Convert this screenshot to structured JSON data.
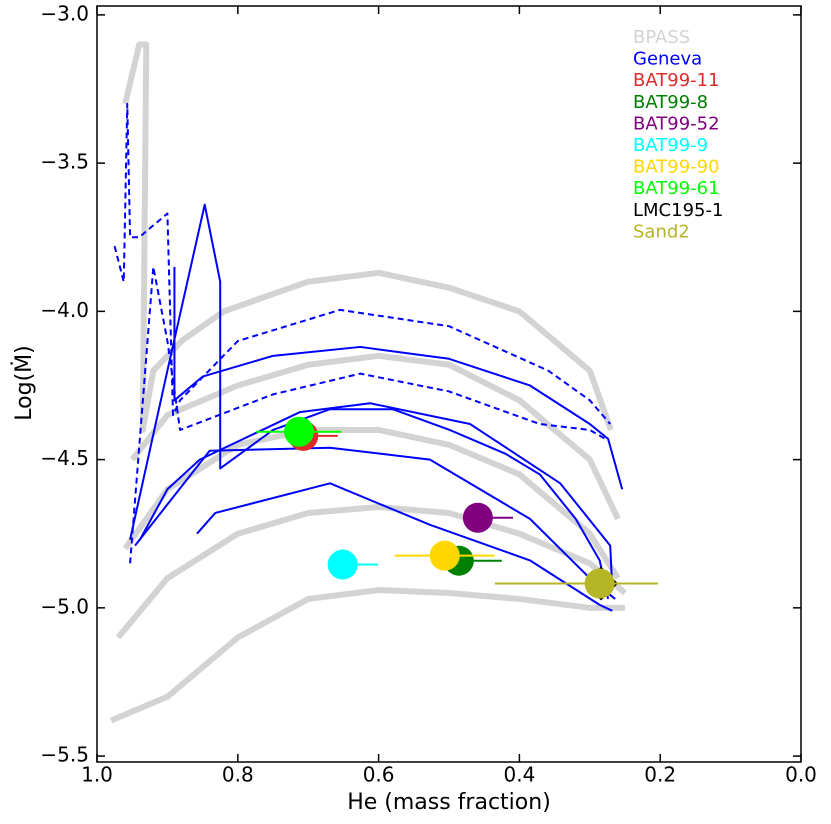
{
  "chart_data": {
    "type": "scatter",
    "xlabel": "He (mass fraction)",
    "ylabel": "Log(Ṁ)",
    "xlim": [
      1.0,
      0.0
    ],
    "ylim": [
      -5.52,
      -2.97
    ],
    "xticks": [
      {
        "value": 1.0,
        "label": "1.0"
      },
      0.8,
      0.6,
      0.4,
      0.2,
      {
        "value": 0.0,
        "label": "0.0"
      }
    ],
    "yticks": [
      {
        "value": -3.0,
        "label": "−3.0"
      },
      {
        "value": -3.5,
        "label": "−3.5"
      },
      {
        "value": -4.0,
        "label": "−4.0"
      },
      {
        "value": -4.5,
        "label": "−4.5"
      },
      {
        "value": -5.0,
        "label": "−5.0"
      },
      {
        "value": -5.5,
        "label": "−5.5"
      }
    ],
    "series": [
      {
        "name": "BPASS",
        "color": "#d3d3d3",
        "type": "line",
        "tracks": [
          {
            "x": [
              0.96,
              0.94,
              0.93,
              0.935,
              0.92,
              0.88,
              0.82,
              0.7,
              0.6,
              0.5,
              0.4,
              0.3,
              0.27
            ],
            "y": [
              -3.3,
              -3.1,
              -3.1,
              -4.4,
              -4.2,
              -4.1,
              -4.0,
              -3.9,
              -3.87,
              -3.92,
              -4.0,
              -4.2,
              -4.4
            ]
          },
          {
            "x": [
              0.95,
              0.9,
              0.8,
              0.7,
              0.6,
              0.5,
              0.4,
              0.3,
              0.26
            ],
            "y": [
              -4.5,
              -4.35,
              -4.25,
              -4.18,
              -4.15,
              -4.18,
              -4.3,
              -4.5,
              -4.7
            ]
          },
          {
            "x": [
              0.96,
              0.9,
              0.8,
              0.7,
              0.6,
              0.5,
              0.4,
              0.3,
              0.26
            ],
            "y": [
              -4.8,
              -4.6,
              -4.45,
              -4.4,
              -4.4,
              -4.45,
              -4.55,
              -4.75,
              -4.9
            ]
          },
          {
            "x": [
              0.97,
              0.9,
              0.8,
              0.7,
              0.6,
              0.5,
              0.4,
              0.3,
              0.25
            ],
            "y": [
              -5.1,
              -4.9,
              -4.75,
              -4.68,
              -4.66,
              -4.68,
              -4.75,
              -4.85,
              -4.95
            ]
          },
          {
            "x": [
              0.98,
              0.9,
              0.8,
              0.7,
              0.6,
              0.5,
              0.4,
              0.3,
              0.25
            ],
            "y": [
              -5.38,
              -5.3,
              -5.1,
              -4.97,
              -4.94,
              -4.95,
              -4.97,
              -5.0,
              -5.0
            ]
          }
        ]
      },
      {
        "name": "Geneva",
        "color": "#0000ff",
        "type": "line",
        "tracks": [
          {
            "dashed": false,
            "x": [
              0.953,
              0.9,
              0.847,
              0.825,
              0.825,
              0.75,
              0.669,
              0.58,
              0.499,
              0.42,
              0.371,
              0.32,
              0.286,
              0.274
            ],
            "y": [
              -4.77,
              -4.2,
              -3.64,
              -3.9,
              -4.53,
              -4.4,
              -4.33,
              -4.33,
              -4.4,
              -4.48,
              -4.55,
              -4.7,
              -4.84,
              -4.97
            ]
          },
          {
            "dashed": false,
            "x": [
              0.89,
              0.89,
              0.85,
              0.75,
              0.626,
              0.5,
              0.385,
              0.3,
              0.274,
              0.254
            ],
            "y": [
              -3.85,
              -4.3,
              -4.22,
              -4.15,
              -4.12,
              -4.16,
              -4.25,
              -4.38,
              -4.43,
              -4.6
            ]
          },
          {
            "dashed": true,
            "x": [
              0.975,
              0.962,
              0.957,
              0.953,
              0.94,
              0.9,
              0.892,
              0.882,
              0.8,
              0.655,
              0.5,
              0.359,
              0.3,
              0.271
            ],
            "y": [
              -3.78,
              -3.9,
              -3.3,
              -3.75,
              -3.75,
              -3.67,
              -4.35,
              -4.3,
              -4.1,
              -3.995,
              -4.05,
              -4.2,
              -4.3,
              -4.38
            ]
          },
          {
            "dashed": true,
            "x": [
              0.953,
              0.92,
              0.9,
              0.882,
              0.75,
              0.626,
              0.5,
              0.371,
              0.3,
              0.278
            ],
            "y": [
              -4.85,
              -3.85,
              -4.1,
              -4.4,
              -4.28,
              -4.21,
              -4.27,
              -4.38,
              -4.4,
              -4.43
            ]
          },
          {
            "dashed": false,
            "x": [
              0.939,
              0.9,
              0.854,
              0.712,
              0.612,
              0.47,
              0.342,
              0.271,
              0.268
            ],
            "y": [
              -4.77,
              -4.6,
              -4.5,
              -4.34,
              -4.31,
              -4.38,
              -4.58,
              -4.79,
              -4.94
            ]
          },
          {
            "dashed": false,
            "x": [
              0.946,
              0.84,
              0.669,
              0.527,
              0.385,
              0.3,
              0.264
            ],
            "y": [
              -4.79,
              -4.47,
              -4.46,
              -4.5,
              -4.7,
              -4.9,
              -4.97
            ]
          },
          {
            "dashed": false,
            "x": [
              0.858,
              0.832,
              0.669,
              0.527,
              0.385,
              0.286,
              0.268
            ],
            "y": [
              -4.75,
              -4.68,
              -4.58,
              -4.72,
              -4.84,
              -4.99,
              -5.01
            ]
          }
        ]
      },
      {
        "name": "BAT99-11",
        "color": "#dd2a2a",
        "type": "scatter",
        "x": 0.707,
        "y": -4.42,
        "xerr": [
          0.049,
          0
        ]
      },
      {
        "name": "BAT99-8",
        "color": "#008000",
        "type": "scatter",
        "x": 0.486,
        "y": -4.841,
        "xerr": [
          0.061,
          0
        ]
      },
      {
        "name": "BAT99-52",
        "color": "#800080",
        "type": "scatter",
        "x": 0.459,
        "y": -4.696,
        "xerr": [
          0.05,
          0
        ]
      },
      {
        "name": "BAT99-9",
        "color": "#00ffff",
        "type": "scatter",
        "x": 0.651,
        "y": -4.854,
        "xerr": [
          0.05,
          0
        ]
      },
      {
        "name": "BAT99-90",
        "color": "#ffd700",
        "type": "scatter",
        "x": 0.506,
        "y": -4.824,
        "xerr": [
          0.071,
          0.071
        ]
      },
      {
        "name": "BAT99-61",
        "color": "#00ff00",
        "type": "scatter",
        "x": 0.713,
        "y": -4.406,
        "xerr": [
          0.06,
          0.061
        ]
      },
      {
        "name": "LMC195-1",
        "color": "#000000",
        "type": "scatter",
        "marker": "diamond",
        "x": 0.284,
        "y": -4.918
      },
      {
        "name": "Sand2",
        "color": "#b5b525",
        "type": "scatter",
        "x": 0.286,
        "y": -4.918,
        "xerr": [
          0.083,
          0.149
        ]
      }
    ]
  }
}
